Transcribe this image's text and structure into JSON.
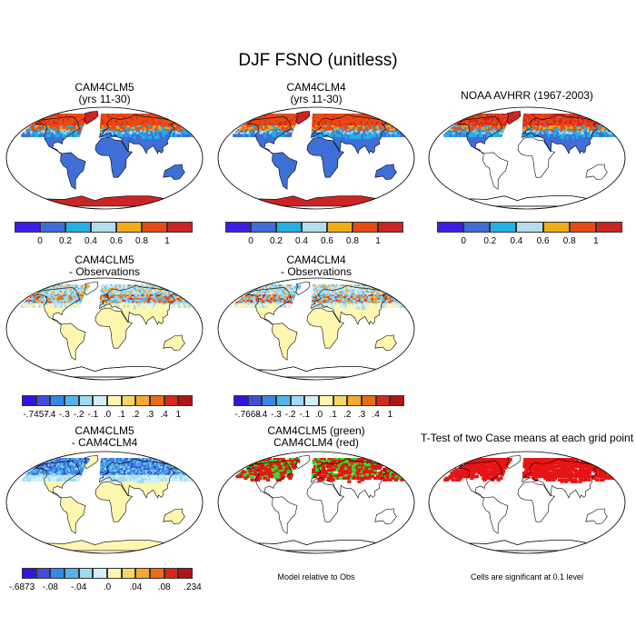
{
  "title": "DJF FSNO (unitless)",
  "panels": [
    {
      "t1": "CAM4CLM5",
      "t2": "(yrs 11-30)",
      "style": "abs",
      "ant": true
    },
    {
      "t1": "CAM4CLM4",
      "t2": "(yrs 11-30)",
      "style": "abs",
      "ant": true
    },
    {
      "t1": "NOAA AVHRR (1967-2003)",
      "t2": "",
      "style": "abs",
      "ant": false
    },
    {
      "t1": "CAM4CLM5",
      "t2": "- Observations",
      "style": "diff",
      "ant": false
    },
    {
      "t1": "CAM4CLM4",
      "t2": "- Observations",
      "style": "diff",
      "ant": false
    },
    {
      "t1": "CAM4CLM5",
      "t2": "- CAM4CLM4",
      "style": "diff2",
      "ant": true
    },
    {
      "t1": "CAM4CLM5 (green)",
      "t2": "CAM4CLM4 (red)",
      "style": "rg",
      "ant": false
    },
    {
      "t1": "T-Test of two Case means at each grid point",
      "t2": "",
      "style": "tt",
      "ant": false
    }
  ],
  "colorbars": {
    "abs": {
      "colors": [
        "#3c1fe6",
        "#3f6fd6",
        "#22b0e6",
        "#b4dcec",
        "#f2ac18",
        "#e84a14",
        "#cc2424"
      ],
      "labels": [
        "0",
        "0.2",
        "0.4",
        "0.6",
        "0.8",
        "1"
      ]
    },
    "diff1": {
      "colors": [
        "#3014e0",
        "#3c50d8",
        "#3a86e0",
        "#52b4e8",
        "#9edaf0",
        "#d2eef6",
        "#fff7b0",
        "#f6d860",
        "#f4aa2c",
        "#ec6a18",
        "#d8281c",
        "#b01414"
      ],
      "labels": [
        "-.7457",
        "-.4",
        "-.3",
        "-.2",
        "-.1",
        ".0",
        ".1",
        ".2",
        ".3",
        ".4",
        "1"
      ]
    },
    "diff2": {
      "colors": [
        "#3014e0",
        "#3c50d8",
        "#3a86e0",
        "#52b4e8",
        "#9edaf0",
        "#d2eef6",
        "#fff7b0",
        "#f6d860",
        "#f4aa2c",
        "#ec6a18",
        "#d8281c",
        "#b01414"
      ],
      "labels": [
        "-.7668",
        "-.4",
        "-.3",
        "-.2",
        "-.1",
        ".0",
        ".1",
        ".2",
        ".3",
        ".4",
        "1"
      ]
    },
    "diff3": {
      "colors": [
        "#3014e0",
        "#3c50d8",
        "#3a86e0",
        "#52b4e8",
        "#9edaf0",
        "#d2eef6",
        "#fff7b0",
        "#f6d860",
        "#f4aa2c",
        "#ec6a18",
        "#d8281c",
        "#b01414"
      ],
      "labels": [
        "-.6873",
        "-.08",
        "-.04",
        ".0",
        ".04",
        ".08",
        ".234"
      ]
    }
  },
  "notes": {
    "model": "Model relative to Obs",
    "sig": "Cells are significant at 0.1 level"
  }
}
